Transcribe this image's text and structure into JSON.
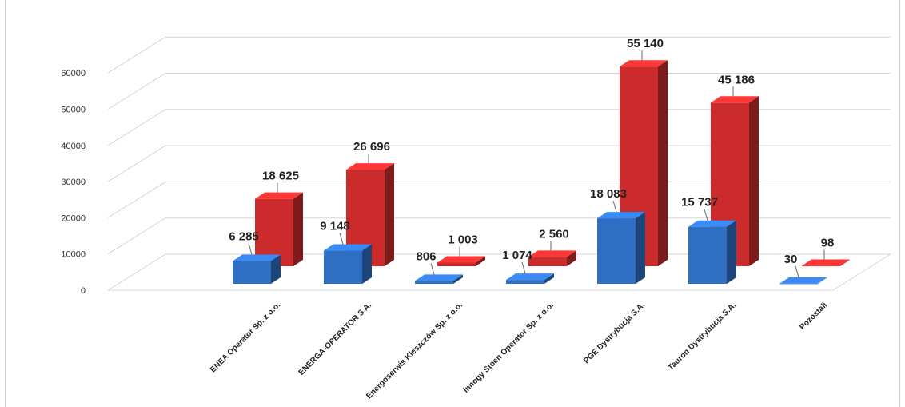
{
  "chart_data": {
    "type": "bar",
    "title": "",
    "xlabel": "",
    "ylabel": "",
    "ylim": [
      0,
      70000
    ],
    "yticks": [
      0,
      10000,
      20000,
      30000,
      40000,
      50000,
      60000
    ],
    "grid": true,
    "legend": "none",
    "categories": [
      "ENEA Operator Sp. z o.o.",
      "ENERGA-OPERATOR S.A.",
      "Energoserwis Kleszczów Sp. z o.o.",
      "innogy Stoen Operator Sp. z o.o.",
      "PGE Dystrybucja S.A.",
      "Tauron Dystrybucja S.A.",
      "Pozostali"
    ],
    "series": [
      {
        "values": [
          6285,
          9148,
          806,
          1074,
          18083,
          15737,
          30
        ],
        "labels": [
          "6 285",
          "9 148",
          "806",
          "1 074",
          "18 083",
          "15 737",
          "30"
        ],
        "color": "#2e6fc4"
      },
      {
        "values": [
          18625,
          26696,
          1003,
          2560,
          55140,
          45186,
          98
        ],
        "labels": [
          "18 625",
          "26 696",
          "1 003",
          "2 560",
          "55 140",
          "45 186",
          "98"
        ],
        "color": "#cc2b2b"
      }
    ]
  }
}
